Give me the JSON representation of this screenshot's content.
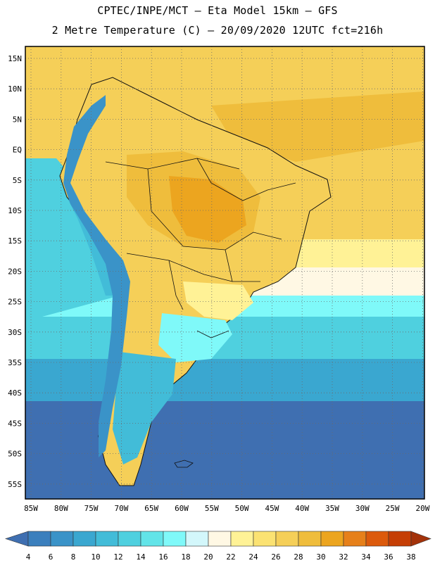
{
  "header": {
    "line1": "CPTEC/INPE/MCT –  Eta Model 15km – GFS",
    "line2": "2 Metre Temperature (C) – 20/09/2020 12UTC fct=216h"
  },
  "map": {
    "lat_labels": [
      "15N",
      "10N",
      "5N",
      "EQ",
      "5S",
      "10S",
      "15S",
      "20S",
      "25S",
      "30S",
      "35S",
      "40S",
      "45S",
      "50S",
      "55S"
    ],
    "lon_labels": [
      "85W",
      "80W",
      "75W",
      "70W",
      "65W",
      "60W",
      "55W",
      "50W",
      "45W",
      "40W",
      "35W",
      "30W",
      "25W",
      "20W"
    ]
  },
  "colorbar": {
    "labels": [
      "4",
      "6",
      "8",
      "10",
      "12",
      "14",
      "16",
      "18",
      "20",
      "22",
      "24",
      "26",
      "28",
      "30",
      "32",
      "34",
      "36",
      "38"
    ],
    "colors": [
      "#3f6fb1",
      "#3b7fbd",
      "#3a93c8",
      "#3aa7d0",
      "#42bcd8",
      "#4fd0df",
      "#62e4e8",
      "#7ff9f9",
      "#d3f7fb",
      "#fff8e4",
      "#fff296",
      "#fbe272",
      "#f5cf58",
      "#efbd3c",
      "#eca51f",
      "#e6801a",
      "#dc5a0c",
      "#c53e05",
      "#a3320a"
    ]
  }
}
